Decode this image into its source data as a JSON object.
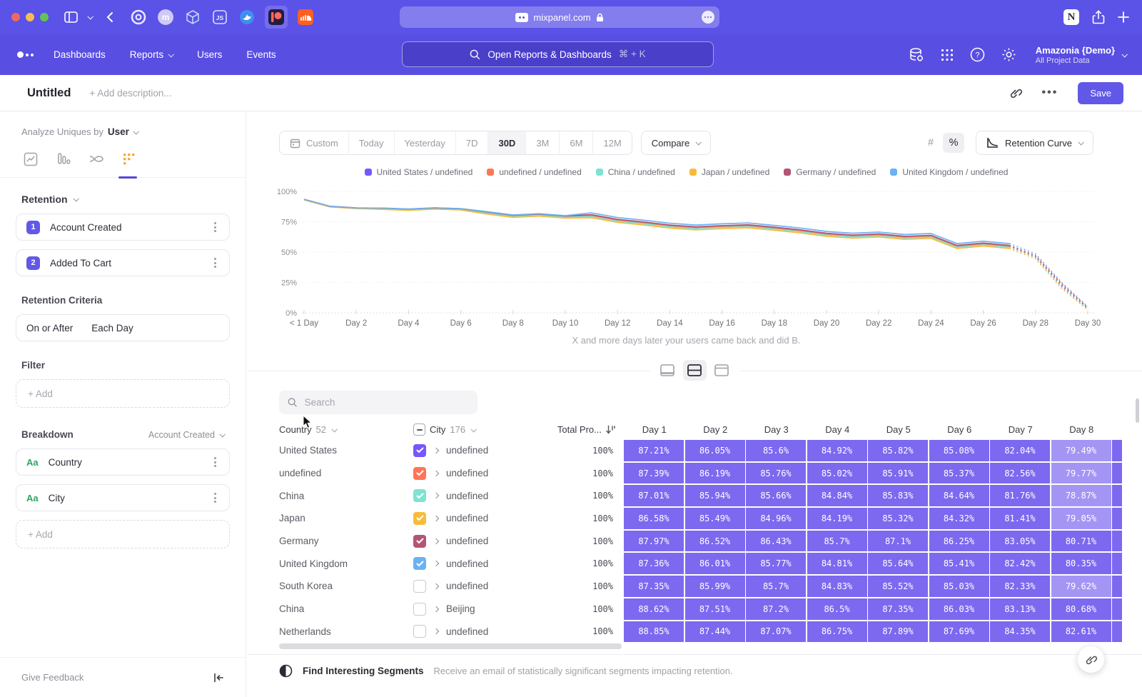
{
  "browser": {
    "url": "mixpanel.com"
  },
  "nav": {
    "menu": [
      {
        "label": "Dashboards",
        "chevron": false
      },
      {
        "label": "Reports",
        "chevron": true
      },
      {
        "label": "Users",
        "chevron": false
      },
      {
        "label": "Events",
        "chevron": false
      }
    ],
    "search_placeholder": "Open Reports & Dashboards",
    "search_shortcut": "⌘ + K",
    "project_name": "Amazonia {Demo}",
    "project_scope": "All Project Data"
  },
  "header": {
    "title": "Untitled",
    "description_placeholder": "+ Add description...",
    "save_label": "Save"
  },
  "sidebar": {
    "analyze_label": "Analyze Uniques by",
    "analyze_value": "User",
    "retention_label": "Retention",
    "steps": [
      {
        "num": "1",
        "label": "Account Created"
      },
      {
        "num": "2",
        "label": "Added To Cart"
      }
    ],
    "criteria_label": "Retention Criteria",
    "criteria_condition": "On or After",
    "criteria_interval": "Each Day",
    "filter_label": "Filter",
    "add_label": "+ Add",
    "breakdown_label": "Breakdown",
    "breakdown_event": "Account Created",
    "breakdowns": [
      {
        "badge": "Aa",
        "label": "Country"
      },
      {
        "badge": "Aa",
        "label": "City"
      }
    ],
    "give_feedback_label": "Give Feedback"
  },
  "toolbar": {
    "ranges": [
      "Custom",
      "Today",
      "Yesterday",
      "7D",
      "30D",
      "3M",
      "6M",
      "12M"
    ],
    "active_range": "30D",
    "compare_label": "Compare",
    "chart_type_label": "Retention Curve"
  },
  "chart_data": {
    "type": "line",
    "unit": "%",
    "ylim": [
      0,
      100
    ],
    "yticks": [
      "0%",
      "25%",
      "50%",
      "75%",
      "100%"
    ],
    "x_ticks": [
      {
        "day": 0,
        "label": "< 1 Day"
      },
      {
        "day": 2,
        "label": "Day 2"
      },
      {
        "day": 4,
        "label": "Day 4"
      },
      {
        "day": 6,
        "label": "Day 6"
      },
      {
        "day": 8,
        "label": "Day 8"
      },
      {
        "day": 10,
        "label": "Day 10"
      },
      {
        "day": 12,
        "label": "Day 12"
      },
      {
        "day": 14,
        "label": "Day 14"
      },
      {
        "day": 16,
        "label": "Day 16"
      },
      {
        "day": 18,
        "label": "Day 18"
      },
      {
        "day": 20,
        "label": "Day 20"
      },
      {
        "day": 22,
        "label": "Day 22"
      },
      {
        "day": 24,
        "label": "Day 24"
      },
      {
        "day": 26,
        "label": "Day 26"
      },
      {
        "day": 28,
        "label": "Day 28"
      },
      {
        "day": 30,
        "label": "Day 30"
      }
    ],
    "dashed_from_day": 27,
    "caption": "X and more days later your users came back and did B.",
    "legend_position": "top-center",
    "series": [
      {
        "name": "United States / undefined",
        "color": "#7856ff",
        "values": [
          93.3,
          87.5,
          86.2,
          85.8,
          85.0,
          86.0,
          85.3,
          82.3,
          79.6,
          80.6,
          79.0,
          79.8,
          76.0,
          73.8,
          71.3,
          69.8,
          70.8,
          71.5,
          69.5,
          67.3,
          64.5,
          63.0,
          64.0,
          62.0,
          62.8,
          54.5,
          56.5,
          54.5,
          46.0,
          22.0,
          3.5
        ]
      },
      {
        "name": "undefined / undefined",
        "color": "#ff7557",
        "values": [
          93.4,
          87.6,
          86.3,
          86.0,
          85.2,
          86.2,
          85.5,
          82.7,
          80.0,
          81.0,
          79.4,
          80.3,
          76.5,
          74.3,
          71.8,
          70.3,
          71.3,
          72.0,
          70.0,
          67.8,
          65.0,
          63.5,
          64.5,
          62.5,
          63.3,
          55.0,
          57.0,
          55.0,
          46.5,
          23.0,
          3.8
        ]
      },
      {
        "name": "China / undefined",
        "color": "#7ee3d2",
        "values": [
          93.2,
          87.4,
          86.1,
          85.6,
          84.8,
          85.8,
          85.1,
          82.0,
          79.3,
          80.3,
          78.7,
          79.3,
          75.5,
          73.3,
          70.8,
          69.3,
          70.3,
          71.0,
          69.0,
          66.8,
          64.0,
          62.5,
          63.5,
          61.5,
          62.3,
          54.0,
          56.0,
          54.0,
          45.5,
          21.0,
          3.0
        ]
      },
      {
        "name": "Japan / undefined",
        "color": "#f8bc3b",
        "values": [
          93.0,
          87.2,
          85.9,
          85.2,
          84.4,
          85.4,
          84.7,
          81.3,
          78.6,
          79.6,
          78.0,
          78.3,
          74.5,
          72.3,
          69.8,
          68.3,
          69.3,
          70.0,
          68.0,
          65.8,
          63.0,
          61.5,
          62.5,
          60.5,
          61.3,
          53.0,
          55.0,
          53.0,
          44.5,
          20.0,
          2.5
        ]
      },
      {
        "name": "Germany / undefined",
        "color": "#b25672",
        "values": [
          93.5,
          87.7,
          86.4,
          86.2,
          85.4,
          86.4,
          85.7,
          83.0,
          80.3,
          81.3,
          79.7,
          80.8,
          77.0,
          74.8,
          72.3,
          70.8,
          71.8,
          72.5,
          70.5,
          68.3,
          65.5,
          64.0,
          65.0,
          63.0,
          63.8,
          55.5,
          57.5,
          55.5,
          47.0,
          24.0,
          4.2
        ]
      },
      {
        "name": "United Kingdom / undefined",
        "color": "#6bb2f2",
        "values": [
          93.4,
          87.6,
          86.3,
          86.3,
          85.5,
          86.5,
          85.8,
          83.3,
          80.6,
          81.6,
          80.0,
          82.3,
          78.5,
          76.3,
          73.8,
          72.3,
          73.3,
          74.0,
          72.0,
          69.8,
          67.0,
          65.5,
          66.5,
          64.5,
          65.3,
          57.0,
          59.0,
          57.0,
          48.5,
          25.0,
          5.0
        ]
      }
    ]
  },
  "table": {
    "search_placeholder": "Search",
    "columns": {
      "country_label": "Country",
      "country_count": "52",
      "city_label": "City",
      "city_count": "176",
      "total_label": "Total Pro...",
      "day_labels": [
        "Day 1",
        "Day 2",
        "Day 3",
        "Day 4",
        "Day 5",
        "Day 6",
        "Day 7",
        "Day 8"
      ]
    },
    "rows": [
      {
        "country": "United States",
        "city": "undefined",
        "checked": true,
        "color": "#7856ff",
        "total": "100%",
        "days": [
          "87.21%",
          "86.05%",
          "85.6%",
          "84.92%",
          "85.82%",
          "85.08%",
          "82.04%",
          "79.49%"
        ]
      },
      {
        "country": "undefined",
        "city": "undefined",
        "checked": true,
        "color": "#ff7557",
        "total": "100%",
        "days": [
          "87.39%",
          "86.19%",
          "85.76%",
          "85.02%",
          "85.91%",
          "85.37%",
          "82.56%",
          "79.77%"
        ]
      },
      {
        "country": "China",
        "city": "undefined",
        "checked": true,
        "color": "#7ee3d2",
        "total": "100%",
        "days": [
          "87.01%",
          "85.94%",
          "85.66%",
          "84.84%",
          "85.83%",
          "84.64%",
          "81.76%",
          "78.87%"
        ]
      },
      {
        "country": "Japan",
        "city": "undefined",
        "checked": true,
        "color": "#f8bc3b",
        "total": "100%",
        "days": [
          "86.58%",
          "85.49%",
          "84.96%",
          "84.19%",
          "85.32%",
          "84.32%",
          "81.41%",
          "79.05%"
        ]
      },
      {
        "country": "Germany",
        "city": "undefined",
        "checked": true,
        "color": "#b25672",
        "total": "100%",
        "days": [
          "87.97%",
          "86.52%",
          "86.43%",
          "85.7%",
          "87.1%",
          "86.25%",
          "83.05%",
          "80.71%"
        ]
      },
      {
        "country": "United Kingdom",
        "city": "undefined",
        "checked": true,
        "color": "#6bb2f2",
        "total": "100%",
        "days": [
          "87.36%",
          "86.01%",
          "85.77%",
          "84.81%",
          "85.64%",
          "85.41%",
          "82.42%",
          "80.35%"
        ]
      },
      {
        "country": "South Korea",
        "city": "undefined",
        "checked": false,
        "color": null,
        "total": "100%",
        "days": [
          "87.35%",
          "85.99%",
          "85.7%",
          "84.83%",
          "85.52%",
          "85.03%",
          "82.33%",
          "79.62%"
        ]
      },
      {
        "country": "China",
        "city": "Beijing",
        "checked": false,
        "color": null,
        "total": "100%",
        "days": [
          "88.62%",
          "87.51%",
          "87.2%",
          "86.5%",
          "87.35%",
          "86.03%",
          "83.13%",
          "80.68%"
        ]
      },
      {
        "country": "Netherlands",
        "city": "undefined",
        "checked": false,
        "color": null,
        "total": "100%",
        "days": [
          "88.85%",
          "87.44%",
          "87.07%",
          "86.75%",
          "87.89%",
          "87.69%",
          "84.35%",
          "82.61%"
        ]
      }
    ]
  },
  "footer": {
    "title": "Find Interesting Segments",
    "subtitle": "Receive an email of statistically significant segments impacting retention."
  }
}
